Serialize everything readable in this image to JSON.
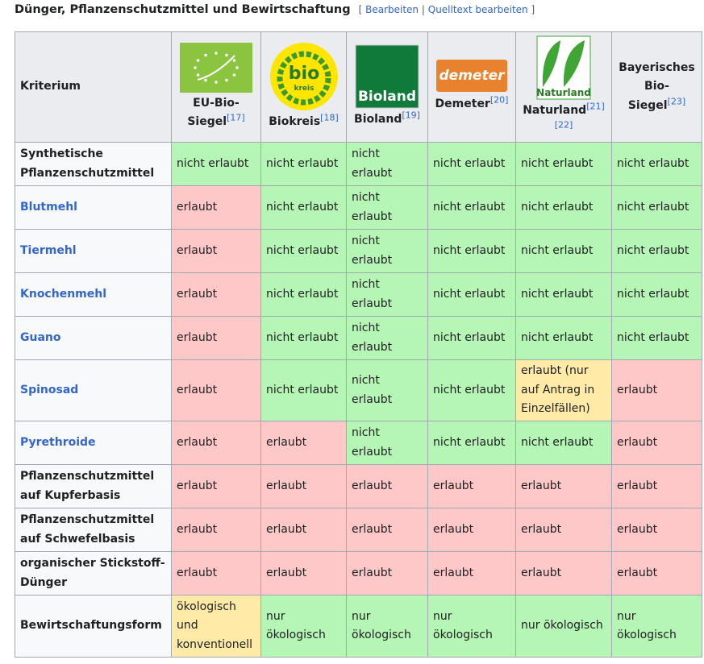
{
  "section": {
    "title": "Dünger, Pflanzenschutzmittel und Bewirtschaftung",
    "edit": [
      "[",
      "Bearbeiten",
      "|",
      "Quelltext bearbeiten",
      "]"
    ]
  },
  "table": {
    "columns": [
      {
        "label": "Kriterium"
      },
      {
        "label": "EU-Bio-Siegel",
        "refs": [
          "[17]"
        ]
      },
      {
        "label": "Biokreis",
        "refs": [
          "[18]"
        ],
        "logo": [
          "bio",
          "kreis"
        ]
      },
      {
        "label": "Bioland",
        "refs": [
          "[19]"
        ],
        "logo": [
          "Bioland"
        ]
      },
      {
        "label": "Demeter",
        "refs": [
          "[20]"
        ],
        "logo": [
          "demeter"
        ]
      },
      {
        "label": "Naturland",
        "refs": [
          "[21]",
          "[22]"
        ],
        "logo": [
          "Naturland"
        ]
      },
      {
        "label": "Bayerisches Bio-Siegel",
        "refs": [
          "[23]"
        ]
      }
    ],
    "rows": [
      {
        "criterion": "Synthetische Pflanzenschutzmittel",
        "link": false,
        "cells": [
          {
            "text": "nicht erlaubt",
            "color": "#b5f5b5"
          },
          {
            "text": "nicht erlaubt",
            "color": "#b5f5b5"
          },
          {
            "text": "nicht erlaubt",
            "color": "#b5f5b5"
          },
          {
            "text": "nicht erlaubt",
            "color": "#b5f5b5"
          },
          {
            "text": "nicht erlaubt",
            "color": "#b5f5b5"
          },
          {
            "text": "nicht erlaubt",
            "color": "#b5f5b5"
          }
        ]
      },
      {
        "criterion": "Blutmehl",
        "link": true,
        "cells": [
          {
            "text": "erlaubt",
            "color": "#ffc8c8"
          },
          {
            "text": "nicht erlaubt",
            "color": "#b5f5b5"
          },
          {
            "text": "nicht erlaubt",
            "color": "#b5f5b5"
          },
          {
            "text": "nicht erlaubt",
            "color": "#b5f5b5"
          },
          {
            "text": "nicht erlaubt",
            "color": "#b5f5b5"
          },
          {
            "text": "nicht erlaubt",
            "color": "#b5f5b5"
          }
        ]
      },
      {
        "criterion": "Tiermehl",
        "link": true,
        "cells": [
          {
            "text": "erlaubt",
            "color": "#ffc8c8"
          },
          {
            "text": "nicht erlaubt",
            "color": "#b5f5b5"
          },
          {
            "text": "nicht erlaubt",
            "color": "#b5f5b5"
          },
          {
            "text": "nicht erlaubt",
            "color": "#b5f5b5"
          },
          {
            "text": "nicht erlaubt",
            "color": "#b5f5b5"
          },
          {
            "text": "nicht erlaubt",
            "color": "#b5f5b5"
          }
        ]
      },
      {
        "criterion": "Knochenmehl",
        "link": true,
        "cells": [
          {
            "text": "erlaubt",
            "color": "#ffc8c8"
          },
          {
            "text": "nicht erlaubt",
            "color": "#b5f5b5"
          },
          {
            "text": "nicht erlaubt",
            "color": "#b5f5b5"
          },
          {
            "text": "nicht erlaubt",
            "color": "#b5f5b5"
          },
          {
            "text": "nicht erlaubt",
            "color": "#b5f5b5"
          },
          {
            "text": "nicht erlaubt",
            "color": "#b5f5b5"
          }
        ]
      },
      {
        "criterion": "Guano",
        "link": true,
        "cells": [
          {
            "text": "erlaubt",
            "color": "#ffc8c8"
          },
          {
            "text": "nicht erlaubt",
            "color": "#b5f5b5"
          },
          {
            "text": "nicht erlaubt",
            "color": "#b5f5b5"
          },
          {
            "text": "nicht erlaubt",
            "color": "#b5f5b5"
          },
          {
            "text": "nicht erlaubt",
            "color": "#b5f5b5"
          },
          {
            "text": "nicht erlaubt",
            "color": "#b5f5b5"
          }
        ]
      },
      {
        "criterion": "Spinosad",
        "link": true,
        "cells": [
          {
            "text": "erlaubt",
            "color": "#ffc8c8"
          },
          {
            "text": "nicht erlaubt",
            "color": "#b5f5b5"
          },
          {
            "text": "nicht erlaubt",
            "color": "#b5f5b5"
          },
          {
            "text": "nicht erlaubt",
            "color": "#b5f5b5"
          },
          {
            "text": "erlaubt (nur auf Antrag in Einzelfällen)",
            "color": "#ffeaa8"
          },
          {
            "text": "erlaubt",
            "color": "#ffc8c8"
          }
        ]
      },
      {
        "criterion": "Pyrethroide",
        "link": true,
        "cells": [
          {
            "text": "erlaubt",
            "color": "#ffc8c8"
          },
          {
            "text": "erlaubt",
            "color": "#ffc8c8"
          },
          {
            "text": "nicht erlaubt",
            "color": "#b5f5b5"
          },
          {
            "text": "nicht erlaubt",
            "color": "#b5f5b5"
          },
          {
            "text": "nicht erlaubt",
            "color": "#b5f5b5"
          },
          {
            "text": "erlaubt",
            "color": "#ffc8c8"
          }
        ]
      },
      {
        "criterion": "Pflanzenschutzmittel auf Kupferbasis",
        "link": false,
        "cells": [
          {
            "text": "erlaubt",
            "color": "#ffc8c8"
          },
          {
            "text": "erlaubt",
            "color": "#ffc8c8"
          },
          {
            "text": "erlaubt",
            "color": "#ffc8c8"
          },
          {
            "text": "erlaubt",
            "color": "#ffc8c8"
          },
          {
            "text": "erlaubt",
            "color": "#ffc8c8"
          },
          {
            "text": "erlaubt",
            "color": "#ffc8c8"
          }
        ]
      },
      {
        "criterion": "Pflanzenschutzmittel auf Schwefelbasis",
        "link": false,
        "cells": [
          {
            "text": "erlaubt",
            "color": "#ffc8c8"
          },
          {
            "text": "erlaubt",
            "color": "#ffc8c8"
          },
          {
            "text": "erlaubt",
            "color": "#ffc8c8"
          },
          {
            "text": "erlaubt",
            "color": "#ffc8c8"
          },
          {
            "text": "erlaubt",
            "color": "#ffc8c8"
          },
          {
            "text": "erlaubt",
            "color": "#ffc8c8"
          }
        ]
      },
      {
        "criterion": "organischer Stickstoff-Dünger",
        "link": false,
        "cells": [
          {
            "text": "erlaubt",
            "color": "#ffc8c8"
          },
          {
            "text": "erlaubt",
            "color": "#ffc8c8"
          },
          {
            "text": "erlaubt",
            "color": "#ffc8c8"
          },
          {
            "text": "erlaubt",
            "color": "#ffc8c8"
          },
          {
            "text": "erlaubt",
            "color": "#ffc8c8"
          },
          {
            "text": "erlaubt",
            "color": "#ffc8c8"
          }
        ]
      },
      {
        "criterion": "Bewirtschaftungsform",
        "link": false,
        "cells": [
          {
            "text": "ökologisch und konventionell",
            "color": "#ffeaa8"
          },
          {
            "text": "nur ökologisch",
            "color": "#b5f5b5"
          },
          {
            "text": "nur ökologisch",
            "color": "#b5f5b5"
          },
          {
            "text": "nur ökologisch",
            "color": "#b5f5b5"
          },
          {
            "text": "nur ökologisch",
            "color": "#b5f5b5"
          },
          {
            "text": "nur ökologisch",
            "color": "#b5f5b5"
          }
        ]
      }
    ]
  }
}
